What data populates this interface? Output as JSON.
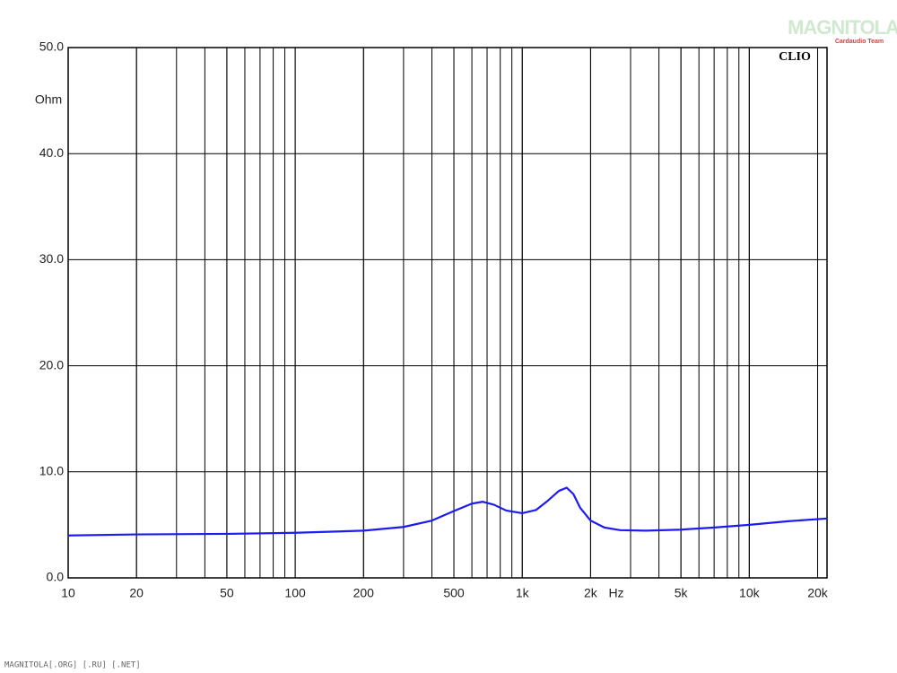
{
  "chart_data": {
    "type": "line",
    "brand": "CLIO",
    "watermark": "MAGNITOLA",
    "watermark_sub": "Cardaudio Team",
    "footer": "MAGNITOLA[.ORG] [.RU] [.NET]",
    "y_label": "Ohm",
    "x_label": "Hz",
    "x_scale": "log",
    "grid": true,
    "color": "#1c1cf0",
    "xlim": [
      10,
      22000
    ],
    "ylim": [
      0,
      50
    ],
    "xticks": [
      10,
      20,
      50,
      100,
      200,
      500,
      {
        "value": 1000,
        "label": "1k"
      },
      {
        "value": 2000,
        "label": "2k"
      },
      {
        "value": 5000,
        "label": "5k"
      },
      {
        "value": 10000,
        "label": "10k"
      },
      {
        "value": 20000,
        "label": "20k"
      }
    ],
    "yticks": [
      {
        "value": 0,
        "label": "0.0"
      },
      {
        "value": 10,
        "label": "10.0"
      },
      {
        "value": 20,
        "label": "20.0"
      },
      {
        "value": 30,
        "label": "30.0"
      },
      {
        "value": 40,
        "label": "40.0"
      },
      {
        "value": 50,
        "label": "50.0"
      }
    ],
    "x": [
      10,
      20,
      50,
      100,
      200,
      300,
      400,
      500,
      600,
      670,
      750,
      850,
      1000,
      1150,
      1300,
      1450,
      1570,
      1680,
      1800,
      2000,
      2300,
      2700,
      3500,
      5000,
      7000,
      10000,
      15000,
      22000
    ],
    "values": [
      4.0,
      4.1,
      4.15,
      4.25,
      4.45,
      4.8,
      5.4,
      6.3,
      7.0,
      7.18,
      6.9,
      6.35,
      6.1,
      6.4,
      7.3,
      8.2,
      8.5,
      7.9,
      6.6,
      5.4,
      4.75,
      4.5,
      4.45,
      4.55,
      4.75,
      5.0,
      5.35,
      5.6
    ]
  }
}
